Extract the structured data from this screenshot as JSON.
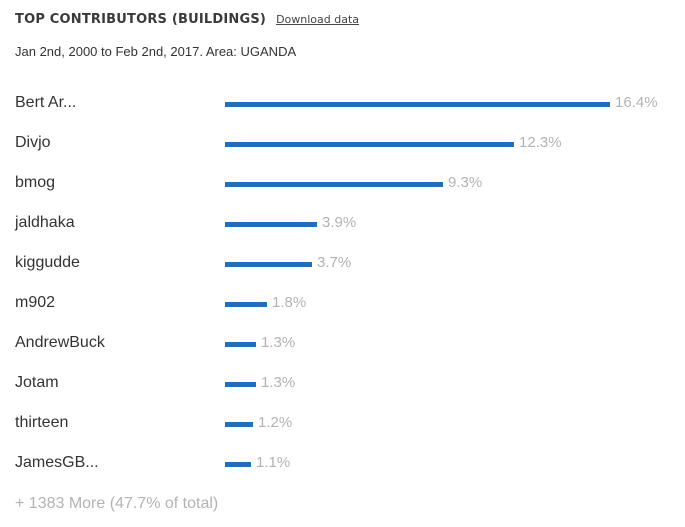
{
  "header": {
    "title": "TOP CONTRIBUTORS (BUILDINGS)",
    "download_label": "Download data"
  },
  "subtitle": "Jan 2nd, 2000 to Feb 2nd, 2017. Area: UGANDA",
  "more_text": "+ 1383 More (47.7% of total)",
  "colors": {
    "bar": "#1f6fbd",
    "percent_text": "#b3b3b3"
  },
  "chart_data": {
    "type": "bar",
    "orientation": "horizontal",
    "title": "TOP CONTRIBUTORS (BUILDINGS)",
    "categories": [
      "Bert Ar...",
      "Divjo",
      "bmog",
      "jaldhaka",
      "kiggudde",
      "m902",
      "AndrewBuck",
      "Jotam",
      "thirteen",
      "JamesGB..."
    ],
    "values": [
      16.4,
      12.3,
      9.3,
      3.9,
      3.7,
      1.8,
      1.3,
      1.3,
      1.2,
      1.1
    ],
    "value_labels": [
      "16.4%",
      "12.3%",
      "9.3%",
      "3.9%",
      "3.7%",
      "1.8%",
      "1.3%",
      "1.3%",
      "1.2%",
      "1.1%"
    ],
    "unit": "%",
    "grid": false,
    "legend": "none"
  }
}
